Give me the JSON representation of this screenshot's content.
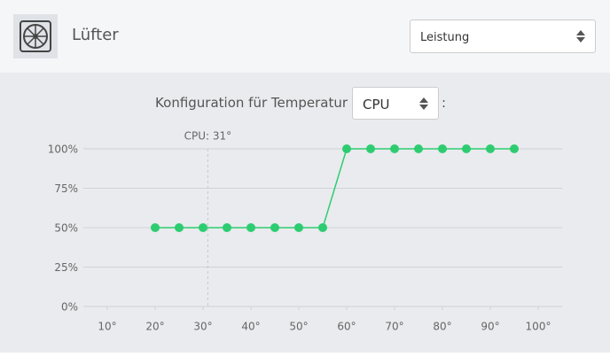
{
  "header": {
    "title": "Lüfter",
    "mode_select": "Leistung"
  },
  "config": {
    "label": "Konfiguration für Temperatur",
    "sensor_select": "CPU",
    "suffix": ":"
  },
  "chart_data": {
    "type": "line",
    "x": [
      20,
      25,
      30,
      35,
      40,
      45,
      50,
      55,
      60,
      65,
      70,
      75,
      80,
      85,
      90,
      95
    ],
    "values": [
      50,
      50,
      50,
      50,
      50,
      50,
      50,
      50,
      100,
      100,
      100,
      100,
      100,
      100,
      100,
      100
    ],
    "color": "#2ecc71",
    "xlim": [
      5,
      105
    ],
    "ylim": [
      0,
      100
    ],
    "xticks": [
      {
        "value": 10,
        "label": "10°"
      },
      {
        "value": 20,
        "label": "20°"
      },
      {
        "value": 30,
        "label": "30°"
      },
      {
        "value": 40,
        "label": "40°"
      },
      {
        "value": 50,
        "label": "50°"
      },
      {
        "value": 60,
        "label": "60°"
      },
      {
        "value": 70,
        "label": "70°"
      },
      {
        "value": 80,
        "label": "80°"
      },
      {
        "value": 90,
        "label": "90°"
      },
      {
        "value": 100,
        "label": "100°"
      }
    ],
    "yticks": [
      {
        "value": 0,
        "label": "0%"
      },
      {
        "value": 25,
        "label": "25%"
      },
      {
        "value": 50,
        "label": "50%"
      },
      {
        "value": 75,
        "label": "75%"
      },
      {
        "value": 100,
        "label": "100%"
      }
    ],
    "grid": true,
    "annotation": {
      "text": "CPU: 31°",
      "x": 31
    }
  }
}
